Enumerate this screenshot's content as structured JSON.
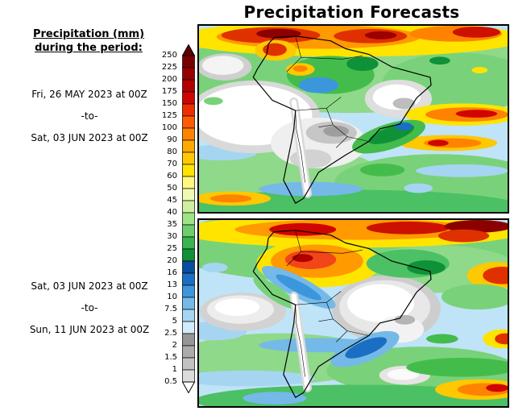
{
  "title": "Precipitation Forecasts",
  "legend": {
    "heading_line1": "Precipitation (mm)",
    "heading_line2": "during the period:"
  },
  "periods": [
    {
      "from": "Fri, 26 MAY 2023 at 00Z",
      "sep": "-to-",
      "to": "Sat, 03 JUN 2023 at 00Z"
    },
    {
      "from": "Sat, 03 JUN 2023 at 00Z",
      "sep": "-to-",
      "to": "Sun, 11 JUN 2023 at 00Z"
    }
  ],
  "colorbar": {
    "unit": "mm",
    "boundary_labels": [
      "250",
      "225",
      "200",
      "175",
      "150",
      "125",
      "100",
      "90",
      "80",
      "70",
      "60",
      "50",
      "45",
      "40",
      "35",
      "30",
      "25",
      "20",
      "16",
      "13",
      "10",
      "7.5",
      "5",
      "2.5",
      "2",
      "1.5",
      "1",
      "0.5"
    ],
    "above_color": "#5f0000",
    "below_color": "#ffffff",
    "segment_colors_top_to_bottom": [
      "#7a0000",
      "#960000",
      "#b30000",
      "#d00500",
      "#ee2e00",
      "#ff5c00",
      "#ff8200",
      "#ffa800",
      "#ffc800",
      "#ffe400",
      "#fff880",
      "#eefab4",
      "#cdf0a0",
      "#a0e288",
      "#6cce6c",
      "#38b450",
      "#0f9138",
      "#0a4ea0",
      "#1a6fc4",
      "#3c96dc",
      "#74b9e8",
      "#a6d5f2",
      "#d2ebfa",
      "#969696",
      "#ababab",
      "#c2c2c2",
      "#dcdcdc"
    ]
  }
}
